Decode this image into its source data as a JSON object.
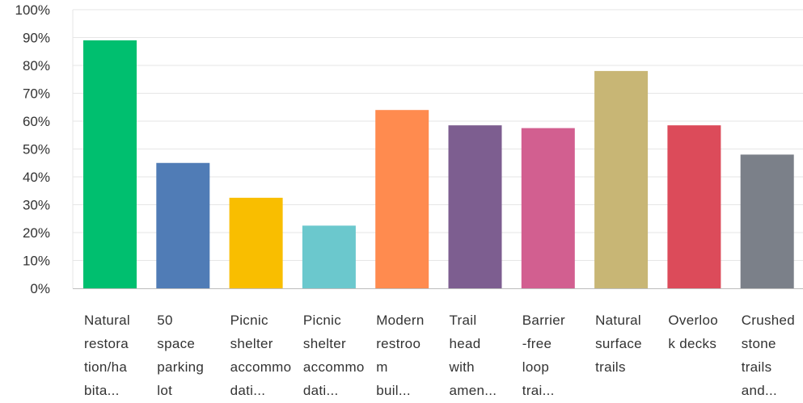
{
  "chart_data": {
    "type": "bar",
    "title": "",
    "xlabel": "",
    "ylabel": "",
    "ylim": [
      0,
      100
    ],
    "yticks": [
      "0%",
      "10%",
      "20%",
      "30%",
      "40%",
      "50%",
      "60%",
      "70%",
      "80%",
      "90%",
      "100%"
    ],
    "grid": true,
    "legend": "none",
    "categories": [
      {
        "lines": [
          "Natural",
          "restora",
          "tion/ha",
          "bita..."
        ],
        "value": 89,
        "color": "#00bf6f"
      },
      {
        "lines": [
          "50",
          "space",
          "parking",
          "lot"
        ],
        "value": 45,
        "color": "#507cb6"
      },
      {
        "lines": [
          "Picnic",
          "shelter",
          "accommo",
          "dati..."
        ],
        "value": 32.5,
        "color": "#f9be00"
      },
      {
        "lines": [
          "Picnic",
          "shelter",
          "accommo",
          "dati..."
        ],
        "value": 22.5,
        "color": "#6bc8cd"
      },
      {
        "lines": [
          "Modern",
          "restroo",
          "m",
          "buil..."
        ],
        "value": 64,
        "color": "#ff8b4f"
      },
      {
        "lines": [
          "Trail",
          "head",
          "with",
          "amen..."
        ],
        "value": 58.5,
        "color": "#7d5e90"
      },
      {
        "lines": [
          "Barrier",
          "-free",
          "loop",
          "trai..."
        ],
        "value": 57.5,
        "color": "#d25f90"
      },
      {
        "lines": [
          "Natural",
          "surface",
          "trails"
        ],
        "value": 78,
        "color": "#c8b675"
      },
      {
        "lines": [
          "Overloo",
          "k decks"
        ],
        "value": 58.5,
        "color": "#dc4b5a"
      },
      {
        "lines": [
          "Crushed",
          "stone",
          "trails",
          "and..."
        ],
        "value": 48,
        "color": "#7b8089"
      }
    ]
  }
}
